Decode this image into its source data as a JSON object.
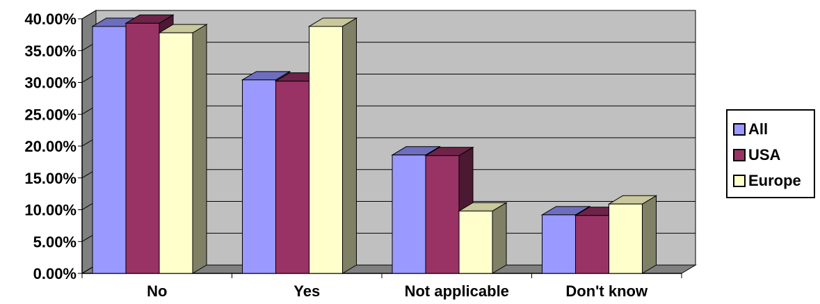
{
  "chart_data": {
    "type": "bar",
    "categories": [
      "No",
      "Yes",
      "Not applicable",
      "Don't know"
    ],
    "series": [
      {
        "name": "All",
        "values": [
          38.8,
          30.4,
          18.6,
          9.2
        ]
      },
      {
        "name": "USA",
        "values": [
          39.3,
          30.2,
          18.5,
          9.1
        ]
      },
      {
        "name": "Europe",
        "values": [
          37.8,
          38.8,
          9.8,
          10.9
        ]
      }
    ],
    "ylim": [
      0,
      40
    ],
    "yticks": [
      "0.00%",
      "5.00%",
      "10.00%",
      "15.00%",
      "20.00%",
      "25.00%",
      "30.00%",
      "35.00%",
      "40.00%"
    ],
    "title": "",
    "xlabel": "",
    "ylabel": "",
    "grid": true,
    "three_d": true,
    "legend_position": "right"
  },
  "colors": {
    "wall": "#c0c0c0",
    "floor": "#808080",
    "series_front": [
      "#9999ff",
      "#993366",
      "#ffffcc"
    ],
    "series_top": [
      "#6e6ebf",
      "#6e2349",
      "#c8c89c"
    ],
    "series_side": [
      "#4c4c80",
      "#4c1933",
      "#808066"
    ]
  }
}
